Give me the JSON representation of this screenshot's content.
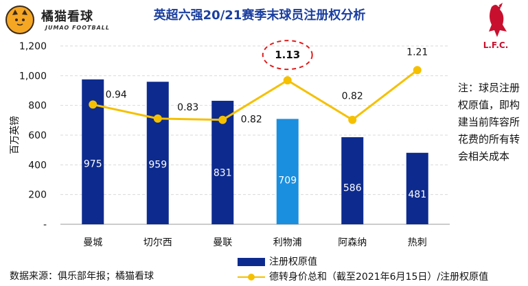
{
  "brand": {
    "name": "橘猫看球",
    "sub": "JUMAO FOOTBALL",
    "logo_icon": "cat-face-icon"
  },
  "lfc_badge": {
    "icon": "liverbird-icon",
    "text": "L.F.C."
  },
  "note_text": "注：球员注册权原值，即构建当前阵容所花费的所有转会相关成本",
  "source_text": "数据来源：俱乐部年报；橘猫看球",
  "legend": {
    "bar_label": "注册权原值",
    "line_label": "德转身价总和（截至2021年6月15日）/注册权原值"
  },
  "colors": {
    "bar": "#0d2b8e",
    "bar_highlight": "#1a8fe0",
    "line": "#f5c000",
    "highlight_ring": "#e01b1b"
  },
  "chart_data": {
    "type": "bar",
    "title": "英超六强20/21赛季末球员注册权分析",
    "ylabel": "百万英镑",
    "xlabel": "",
    "ylim": [
      0,
      1200
    ],
    "yticks": [
      0,
      200,
      400,
      600,
      800,
      1000,
      1200
    ],
    "ytick_labels": [
      "-",
      "200",
      "400",
      "600",
      "800",
      "1,000",
      "1,200"
    ],
    "grid": true,
    "categories": [
      "曼城",
      "切尔西",
      "曼联",
      "利物浦",
      "阿森纳",
      "热刺"
    ],
    "series": [
      {
        "name": "注册权原值",
        "type": "bar",
        "values": [
          975,
          959,
          831,
          709,
          586,
          481
        ],
        "labels": [
          "975",
          "959",
          "831",
          "709",
          "586",
          "481"
        ]
      },
      {
        "name": "德转身价总和（截至2021年6月15日）/注册权原值",
        "type": "line",
        "values": [
          0.94,
          0.83,
          0.82,
          1.13,
          0.82,
          1.21
        ],
        "labels": [
          "0.94",
          "0.83",
          "0.82",
          "1.13",
          "0.82",
          "1.21"
        ]
      }
    ],
    "highlight_category": "利物浦"
  }
}
